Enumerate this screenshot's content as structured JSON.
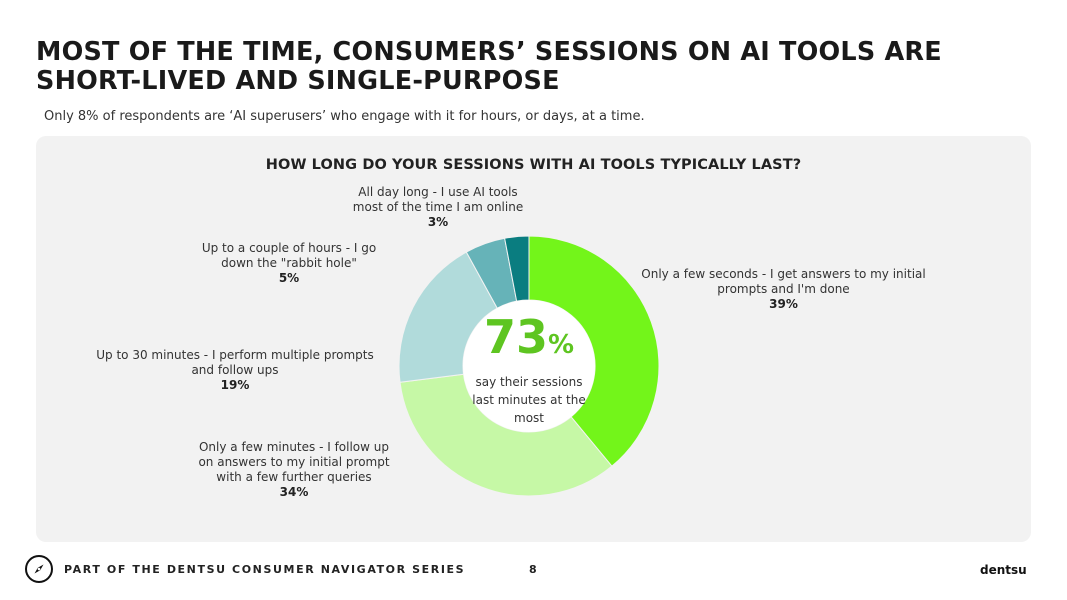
{
  "page": {
    "title": "MOST OF THE TIME, CONSUMERS’ SESSIONS ON AI TOOLS ARE SHORT-LIVED AND SINGLE-PURPOSE",
    "subtitle": "Only 8% of respondents are ‘AI superusers’ who engage with it for hours, or days, at a time."
  },
  "chart_data": {
    "type": "pie",
    "donut": true,
    "title": "HOW LONG DO YOUR SESSIONS WITH AI TOOLS TYPICALLY LAST?",
    "slices": [
      {
        "label": "Only a few seconds - I get answers to my initial prompts and I'm done",
        "value": 39,
        "display": "39%",
        "color": "#73f51a"
      },
      {
        "label": "Only a few minutes - I follow up on answers to my initial prompt with a few further queries",
        "value": 34,
        "display": "34%",
        "color": "#c6f8a6"
      },
      {
        "label": "Up to 30 minutes - I perform multiple prompts and follow ups",
        "value": 19,
        "display": "19%",
        "color": "#b1dbdb"
      },
      {
        "label": "Up to a couple of hours - I go down the \"rabbit hole\"",
        "value": 5,
        "display": "5%",
        "color": "#66b3b8"
      },
      {
        "label": "All day long - I use AI tools most of the time I am online",
        "value": 3,
        "display": "3%",
        "color": "#0a7d80"
      }
    ],
    "center": {
      "value": "73",
      "symbol": "%",
      "text": "say their sessions last minutes at the most",
      "color": "#5ec521"
    }
  },
  "footer": {
    "series_text": "PART OF THE DENTSU CONSUMER NAVIGATOR SERIES",
    "page_number": "8",
    "brand": "dentsu",
    "icon": "compass-icon"
  }
}
